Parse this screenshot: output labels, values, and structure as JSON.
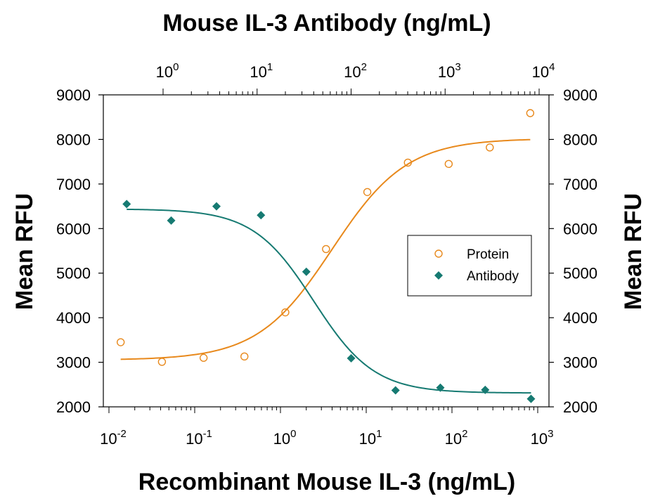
{
  "chart_data": {
    "type": "scatter",
    "title": "Mouse IL-3 Antibody (ng/mL)",
    "xlabel": "Recombinant Mouse IL-3 (ng/mL)",
    "ylabel": "Mean RFU",
    "ylabel_right": "Mean RFU",
    "x_scale": "log",
    "xlim": [
      0.01,
      1000
    ],
    "x_ticks": [
      {
        "v": 0.01,
        "base": "10",
        "exp": "-2"
      },
      {
        "v": 0.1,
        "base": "10",
        "exp": "-1"
      },
      {
        "v": 1,
        "base": "10",
        "exp": "0"
      },
      {
        "v": 10,
        "base": "10",
        "exp": "1"
      },
      {
        "v": 100,
        "base": "10",
        "exp": "2"
      },
      {
        "v": 1000,
        "base": "10",
        "exp": "3"
      }
    ],
    "x2_ticks": [
      {
        "v": 1,
        "base": "10",
        "exp": "0"
      },
      {
        "v": 10,
        "base": "10",
        "exp": "1"
      },
      {
        "v": 100,
        "base": "10",
        "exp": "2"
      },
      {
        "v": 1000,
        "base": "10",
        "exp": "3"
      },
      {
        "v": 10000,
        "base": "10",
        "exp": "4"
      }
    ],
    "ylim": [
      2000,
      9000
    ],
    "y_ticks": [
      "2000",
      "3000",
      "4000",
      "5000",
      "6000",
      "7000",
      "8000",
      "9000"
    ],
    "legend": "right",
    "series": [
      {
        "name": "Protein",
        "axis": "bottom",
        "marker": "open-circle",
        "color": "#E8891C",
        "x": [
          0.0137,
          0.0415,
          0.127,
          0.38,
          1.14,
          3.4,
          10.3,
          30.6,
          91.6,
          276,
          818
        ],
        "y": [
          3450,
          3010,
          3100,
          3130,
          4120,
          5540,
          6820,
          7480,
          7450,
          7820,
          8590
        ]
      },
      {
        "name": "Antibody",
        "axis": "top",
        "marker": "filled-diamond",
        "color": "#167A72",
        "x": [
          0.41,
          1.22,
          3.7,
          11.0,
          33.4,
          100.1,
          297,
          890,
          2670,
          8200
        ],
        "y": [
          6550,
          6180,
          6500,
          6300,
          5030,
          3090,
          2370,
          2430,
          2380,
          2180
        ]
      }
    ],
    "fits": [
      {
        "series": "Protein",
        "axis": "bottom",
        "x_range": [
          0.0137,
          818
        ],
        "bottom": 3050,
        "top": 8020,
        "ec50": 4.0,
        "hill": 1.0
      },
      {
        "series": "Antibody",
        "axis": "top",
        "x_range": [
          0.41,
          8200
        ],
        "bottom": 2310,
        "top": 6440,
        "ic50": 40,
        "hill": 1.35
      }
    ]
  }
}
